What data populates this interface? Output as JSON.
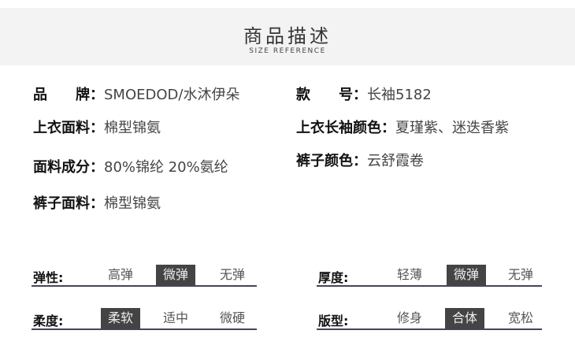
{
  "header": {
    "title": "商品描述",
    "subtitle": "SIZE REFERENCE"
  },
  "info": [
    {
      "key": "品　　牌：",
      "value": "SMOEDOD/水沐伊朵"
    },
    {
      "key": "款　　号：",
      "value": "长袖5182"
    },
    {
      "key": "上衣面料：",
      "value": "棉型锦氨"
    },
    {
      "key": "上衣长袖颜色：",
      "value": "夏瑾紫、迷迭香紫"
    },
    {
      "key": "面料成分：",
      "value": "80%锦纶 20%氨纶"
    },
    {
      "key": "裤子颜色：",
      "value": "云舒霞卷"
    },
    {
      "key": "裤子面料：",
      "value": "棉型锦氨"
    }
  ],
  "attributes": [
    {
      "label": "弹性:",
      "options": [
        "高弹",
        "微弹",
        "无弹"
      ],
      "selected": 1
    },
    {
      "label": "厚度:",
      "options": [
        "轻薄",
        "微弹",
        "无弹"
      ],
      "selected": 1
    },
    {
      "label": "柔度:",
      "options": [
        "柔软",
        "适中",
        "微硬"
      ],
      "selected": 0
    },
    {
      "label": "版型:",
      "options": [
        "修身",
        "合体",
        "宽松"
      ],
      "selected": 1
    }
  ]
}
